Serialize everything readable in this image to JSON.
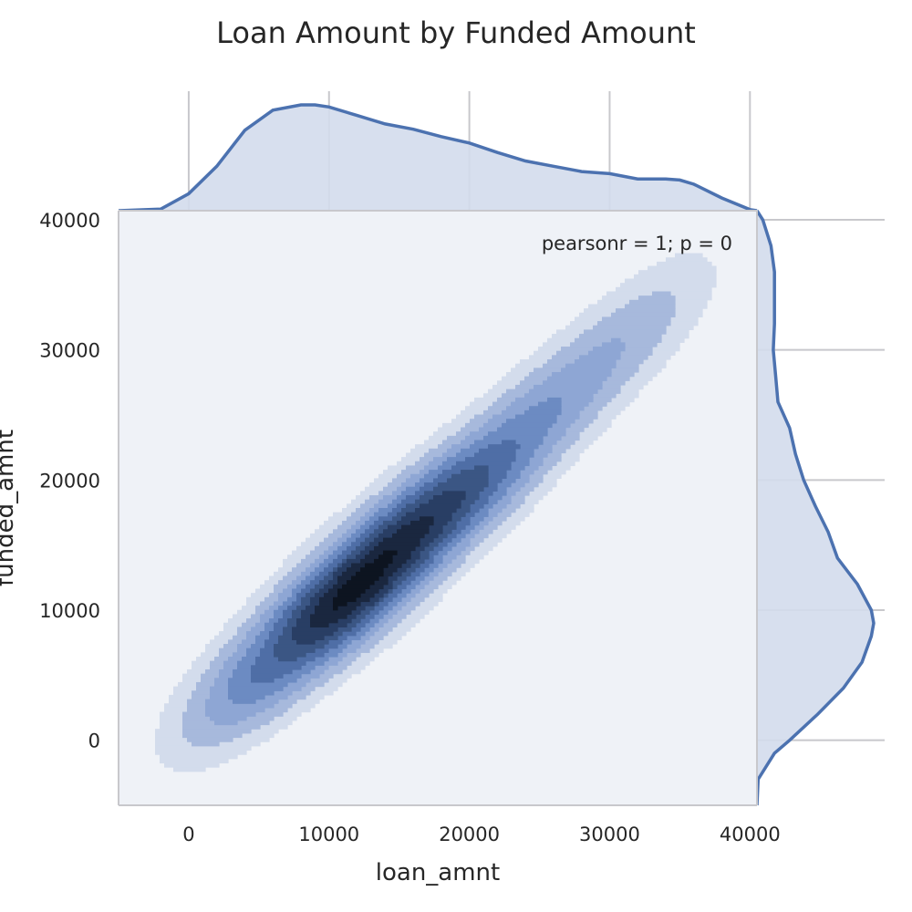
{
  "chart_data": {
    "type": "kde-jointplot",
    "title": "Loan Amount by Funded Amount",
    "xlabel": "loan_amnt",
    "ylabel": "funded_amnt",
    "annotation": "pearsonr = 1; p = 0",
    "xlim": [
      -5000,
      40500
    ],
    "ylim": [
      -5000,
      40700
    ],
    "xticks": [
      0,
      10000,
      20000,
      30000,
      40000
    ],
    "yticks": [
      0,
      10000,
      20000,
      30000,
      40000
    ],
    "grid": true,
    "colors": {
      "plot_bg": "#eff2f7",
      "marginal_line": "#4c72b0",
      "marginal_fill": "#d3dcec",
      "grid": "#c8c8cc",
      "levels": [
        "#d3dcec",
        "#a7b9dc",
        "#8ea6d4",
        "#6c8bc2",
        "#4f6ea6",
        "#3b5684",
        "#293e64",
        "#1a273f",
        "#0d1420"
      ]
    },
    "density_ridge": [
      {
        "x": 1200,
        "y": 1200,
        "w": 0.2
      },
      {
        "x": 5000,
        "y": 5000,
        "w": 0.6
      },
      {
        "x": 9300,
        "y": 9300,
        "w": 1.0
      },
      {
        "x": 12500,
        "y": 12300,
        "w": 0.85
      },
      {
        "x": 15000,
        "y": 15000,
        "w": 0.7
      },
      {
        "x": 17500,
        "y": 17500,
        "w": 0.55
      },
      {
        "x": 20000,
        "y": 19500,
        "w": 0.5
      },
      {
        "x": 22500,
        "y": 22000,
        "w": 0.35
      },
      {
        "x": 25000,
        "y": 25000,
        "w": 0.3
      },
      {
        "x": 27500,
        "y": 27000,
        "w": 0.2
      },
      {
        "x": 30000,
        "y": 30000,
        "w": 0.22
      },
      {
        "x": 32500,
        "y": 32000,
        "w": 0.12
      },
      {
        "x": 35000,
        "y": 35000,
        "w": 0.12
      }
    ],
    "marginal_x": {
      "x": [
        -5000,
        -2000,
        0,
        2000,
        4000,
        6000,
        8000,
        9000,
        10000,
        12000,
        14000,
        16000,
        18000,
        20000,
        22000,
        24000,
        26000,
        28000,
        30000,
        32000,
        34000,
        35000,
        36000,
        38000,
        40000,
        40500
      ],
      "density": [
        0.0,
        0.015,
        0.16,
        0.42,
        0.76,
        0.95,
        1.0,
        1.0,
        0.98,
        0.9,
        0.82,
        0.77,
        0.7,
        0.64,
        0.55,
        0.47,
        0.42,
        0.37,
        0.35,
        0.3,
        0.3,
        0.29,
        0.25,
        0.12,
        0.01,
        0.0
      ]
    },
    "marginal_y": {
      "y": [
        -5000,
        -3000,
        -1000,
        0,
        2000,
        4000,
        6000,
        8000,
        9000,
        10000,
        12000,
        14000,
        16000,
        18000,
        20000,
        22000,
        24000,
        26000,
        28000,
        30000,
        32000,
        34000,
        36000,
        38000,
        40000,
        40700
      ],
      "density": [
        0.0,
        0.01,
        0.15,
        0.28,
        0.52,
        0.74,
        0.9,
        0.98,
        1.0,
        0.98,
        0.86,
        0.69,
        0.61,
        0.5,
        0.4,
        0.33,
        0.28,
        0.18,
        0.16,
        0.14,
        0.15,
        0.15,
        0.15,
        0.12,
        0.05,
        0.0
      ]
    }
  }
}
